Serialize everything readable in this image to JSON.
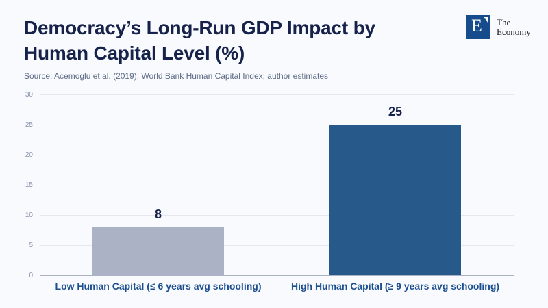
{
  "header": {
    "title_lines": [
      "Democracy’s Long-Run GDP Impact by",
      "Human Capital Level (%)"
    ],
    "source": "Source: Acemoglu et al. (2019); World Bank Human Capital Index; author estimates",
    "logo": {
      "letter": "E",
      "name_line1": "The",
      "name_line2": "Economy",
      "square_color": "#164c8c"
    }
  },
  "chart_data": {
    "type": "bar",
    "title": "Democracy’s Long-Run GDP Impact by Human Capital Level (%)",
    "categories": [
      "Low Human Capital (≤ 6 years avg schooling)",
      "High Human Capital (≥ 9 years avg schooling)"
    ],
    "values": [
      8,
      25
    ],
    "bar_colors": [
      "#acb2c5",
      "#27598b"
    ],
    "ylim": [
      0,
      30
    ],
    "yticks": [
      0,
      5,
      10,
      15,
      20,
      25,
      30
    ],
    "grid": true,
    "legend": "none",
    "xlabel": "",
    "ylabel": ""
  },
  "colors": {
    "background": "#f8fafd",
    "title_text": "#17224a",
    "source_text": "#5d6b86",
    "category_label_text": "#1d4f8f",
    "tick_label_text": "#8a94ad",
    "gridline": "#e4e7ee",
    "axis_line": "#a9b1c2"
  }
}
